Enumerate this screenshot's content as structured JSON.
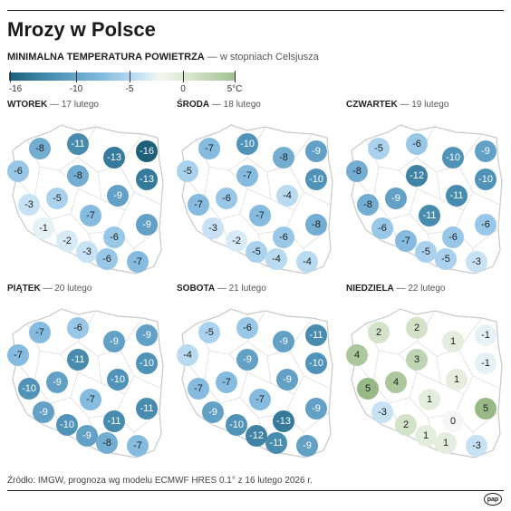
{
  "title": "Mrozy w Polsce",
  "subtitle_bold": "MINIMALNA TEMPERATURA POWIETRZA",
  "subtitle_light": " — w stopniach Celsjusza",
  "scale_labels": [
    "-16",
    "-10",
    "-5",
    "0",
    "5°C"
  ],
  "maps": [
    {
      "day": "WTOREK",
      "date": " — 17 lutego",
      "values": [
        "-8",
        "-11",
        "-13",
        "-16",
        "-6",
        "-8",
        "-13",
        "-3",
        "-5",
        "-9",
        "-7",
        "-1",
        "-9",
        "-2",
        "-6",
        "-3",
        "-6",
        "-7"
      ]
    },
    {
      "day": "ŚRODA",
      "date": " — 18 lutego",
      "values": [
        "-7",
        "-10",
        "-8",
        "-9",
        "-5",
        "-7",
        "-10",
        "-7",
        "-6",
        "-4",
        "-7",
        "-3",
        "-8",
        "-2",
        "-6",
        "-5",
        "-4",
        "-4"
      ]
    },
    {
      "day": "CZWARTEK",
      "date": " — 19 lutego",
      "values": [
        "-5",
        "-6",
        "-10",
        "-9",
        "-8",
        "-12",
        "-10",
        "-8",
        "-9",
        "-11",
        "-11",
        "-6",
        "-6",
        "-7",
        "-6",
        "-5",
        "-5",
        "-3"
      ]
    },
    {
      "day": "PIĄTEK",
      "date": " — 20 lutego",
      "values": [
        "-7",
        "-6",
        "-9",
        "-9",
        "-7",
        "-11",
        "-10",
        "-10",
        "-9",
        "-10",
        "-7",
        "-9",
        "-11",
        "-10",
        "-11",
        "-9",
        "-8",
        "-7"
      ]
    },
    {
      "day": "SOBOTA",
      "date": " — 21 lutego",
      "values": [
        "-5",
        "-6",
        "-9",
        "-11",
        "-4",
        "-9",
        "-10",
        "-7",
        "-7",
        "-9",
        "-7",
        "-9",
        "-9",
        "-10",
        "-13",
        "-12",
        "-11",
        "-9"
      ]
    },
    {
      "day": "NIEDZIELA",
      "date": " — 22 lutego",
      "values": [
        "2",
        "2",
        "1",
        "-1",
        "4",
        "3",
        "-1",
        "5",
        "4",
        "1",
        "1",
        "-3",
        "5",
        "2",
        "0",
        "1",
        "1",
        "-3"
      ]
    }
  ],
  "source": "Źródło: IMGW, prognoza wg modelu ECMWF HRES 0.1° z 16 lutego 2026 r.",
  "logo": "pap"
}
